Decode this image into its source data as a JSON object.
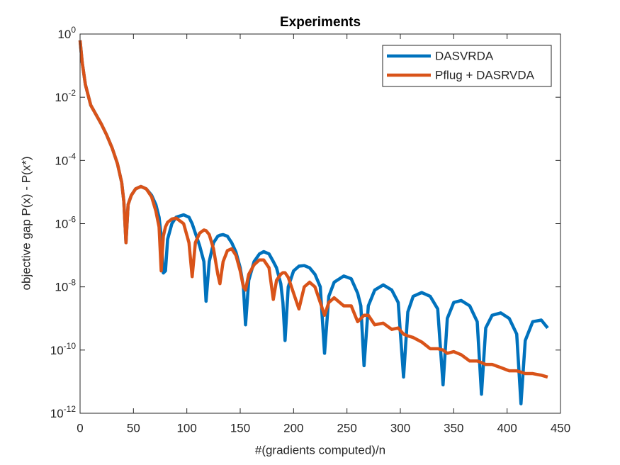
{
  "chart_data": {
    "type": "line",
    "title": "Experiments",
    "x_label": "#(gradients computed)/n",
    "y_label": "objective gap P(x) - P(x*)",
    "y_scale": "log",
    "legend_position": "northeast",
    "line_width": 4.5,
    "xlim": [
      0,
      450
    ],
    "xticks": [
      0,
      50,
      100,
      150,
      200,
      250,
      300,
      350,
      400,
      450
    ],
    "ylim": [
      1e-12,
      1
    ],
    "yticks": [
      {
        "value": 1e-12,
        "label": "10^-12"
      },
      {
        "value": 1e-10,
        "label": "10^-10"
      },
      {
        "value": 1e-08,
        "label": "10^-8"
      },
      {
        "value": 1e-06,
        "label": "10^-6"
      },
      {
        "value": 0.0001,
        "label": "10^-4"
      },
      {
        "value": 0.01,
        "label": "10^-2"
      },
      {
        "value": 1,
        "label": "10^0"
      }
    ],
    "x": [
      0,
      2,
      5,
      10,
      15,
      20,
      25,
      30,
      35,
      39,
      41,
      43,
      45,
      48,
      52,
      57,
      62,
      67,
      71,
      74,
      76,
      78,
      80,
      82,
      86,
      90,
      97,
      102,
      105,
      108,
      112,
      116,
      118,
      121,
      125,
      129,
      131,
      134,
      138,
      142,
      146,
      150,
      153,
      155,
      158,
      163,
      168,
      172,
      177,
      181,
      184,
      188,
      190,
      192,
      195,
      200,
      205,
      210,
      215,
      220,
      225,
      229,
      233,
      238,
      247,
      254,
      260,
      263,
      266,
      270,
      276,
      284,
      292,
      298,
      303,
      307,
      312,
      320,
      328,
      335,
      340,
      344,
      350,
      357,
      365,
      372,
      376,
      380,
      386,
      394,
      402,
      409,
      413,
      417,
      424,
      432,
      438
    ],
    "series": [
      {
        "name": "DASVRDA",
        "color": "#0072BD",
        "values": [
          0.63,
          0.126,
          0.025,
          0.0056,
          0.0028,
          0.0014,
          0.00063,
          0.00025,
          7.9e-05,
          2e-05,
          5e-06,
          2.5e-07,
          4e-06,
          7.9e-06,
          1.26e-05,
          1.5e-05,
          1.26e-05,
          7.9e-06,
          4e-06,
          1.6e-06,
          4e-07,
          2.75e-08,
          3.2e-08,
          3.2e-07,
          1e-06,
          1.6e-06,
          1.9e-06,
          1.6e-06,
          1e-06,
          5e-07,
          2e-07,
          6.3e-08,
          3.5e-09,
          6.3e-08,
          2.5e-07,
          4e-07,
          4.3e-07,
          4.5e-07,
          4e-07,
          2.5e-07,
          1.26e-07,
          4e-08,
          1e-08,
          6.3e-10,
          1.6e-08,
          6.3e-08,
          1.1e-07,
          1.3e-07,
          1.1e-07,
          6.3e-08,
          4e-08,
          1.26e-08,
          3.2e-09,
          2e-10,
          1e-08,
          3.2e-08,
          4.5e-08,
          4.7e-08,
          4e-08,
          2.5e-08,
          1e-08,
          7.9e-11,
          5e-09,
          1.4e-08,
          2.2e-08,
          1.8e-08,
          6.3e-09,
          2.5e-09,
          3.2e-11,
          2.5e-09,
          7.9e-09,
          1.15e-08,
          7.9e-09,
          3.2e-09,
          1.4e-11,
          1.6e-09,
          5e-09,
          6.6e-09,
          5e-09,
          2e-09,
          7.9e-12,
          1e-09,
          3.2e-09,
          3.7e-09,
          2.5e-09,
          7.9e-10,
          4e-12,
          5e-10,
          1.26e-09,
          1.5e-09,
          1e-09,
          3.2e-10,
          2e-12,
          2e-10,
          7.9e-10,
          8.9e-10,
          5e-10
        ]
      },
      {
        "name": "Pflug + DASRVDA",
        "color": "#D95319",
        "values": [
          0.63,
          0.126,
          0.025,
          0.0056,
          0.0028,
          0.0014,
          0.00063,
          0.00025,
          7.9e-05,
          2e-05,
          5e-06,
          2.5e-07,
          4e-06,
          7.9e-06,
          1.26e-05,
          1.5e-05,
          1.26e-05,
          7.1e-06,
          2.5e-06,
          7.9e-07,
          3.2e-08,
          4e-07,
          7.9e-07,
          1.1e-06,
          1.4e-06,
          1.5e-06,
          1e-06,
          2.5e-07,
          2.1e-08,
          2.5e-07,
          5e-07,
          6.3e-07,
          6e-07,
          4.5e-07,
          1.6e-07,
          2.5e-08,
          1.26e-08,
          6.3e-08,
          1.4e-07,
          1.6e-07,
          1e-07,
          3.2e-08,
          1e-08,
          7.9e-09,
          2.5e-08,
          5e-08,
          7.1e-08,
          7.1e-08,
          4e-08,
          4e-09,
          1.6e-08,
          2.5e-08,
          2.8e-08,
          2.8e-08,
          2e-08,
          6.3e-09,
          2e-09,
          1e-08,
          1.4e-08,
          1e-08,
          3.2e-09,
          1.26e-09,
          3.2e-09,
          4.5e-09,
          2.5e-09,
          2.5e-09,
          7.9e-10,
          1e-09,
          1.26e-09,
          1.26e-09,
          6.3e-10,
          7.1e-10,
          4.5e-10,
          5e-10,
          3.2e-10,
          2.8e-10,
          2.5e-10,
          1.8e-10,
          1.1e-10,
          1.1e-10,
          1e-10,
          7.9e-11,
          8.9e-11,
          7.1e-11,
          4.5e-11,
          4.5e-11,
          4e-11,
          3.5e-11,
          3.5e-11,
          2.8e-11,
          2.2e-11,
          2.2e-11,
          2e-11,
          1.8e-11,
          1.8e-11,
          1.6e-11,
          1.4e-11
        ]
      }
    ]
  }
}
